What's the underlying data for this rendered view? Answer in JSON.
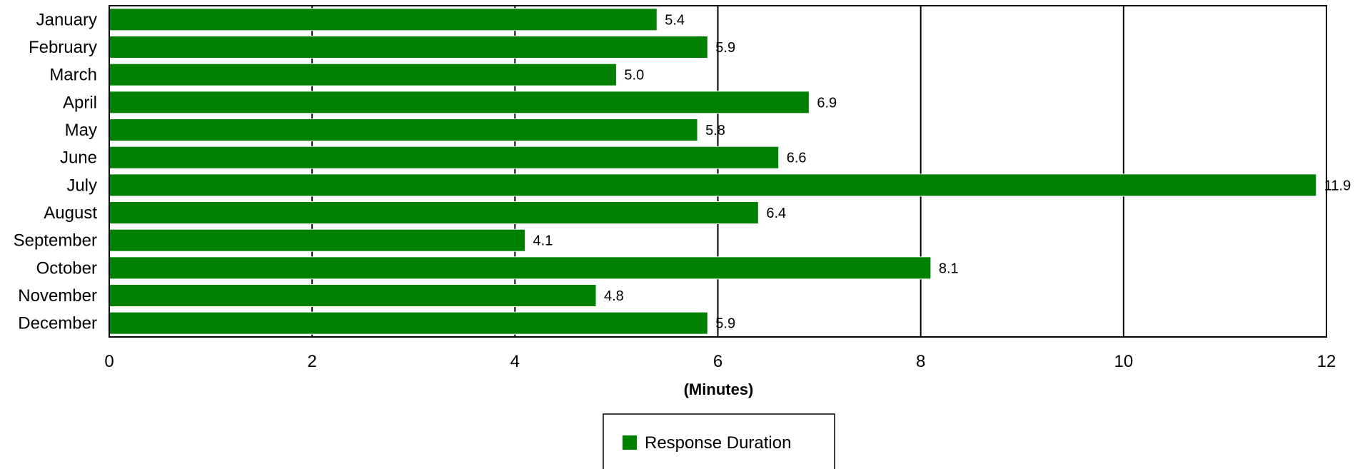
{
  "chart_data": {
    "type": "bar",
    "orientation": "horizontal",
    "categories": [
      "January",
      "February",
      "March",
      "April",
      "May",
      "June",
      "July",
      "August",
      "September",
      "October",
      "November",
      "December"
    ],
    "series": [
      {
        "name": "Response Duration",
        "values": [
          5.4,
          5.9,
          5.0,
          6.9,
          5.8,
          6.6,
          11.9,
          6.4,
          4.1,
          8.1,
          4.8,
          5.9
        ],
        "color": "#008000"
      }
    ],
    "data_labels": [
      "5.4",
      "5.9",
      "5.0",
      "6.9",
      "5.8",
      "6.6",
      "11.9",
      "6.4",
      "4.1",
      "8.1",
      "4.8",
      "5.9"
    ],
    "xlabel": "(Minutes)",
    "ylabel": "",
    "xlim": [
      0,
      12
    ],
    "x_ticks": [
      0,
      2,
      4,
      6,
      8,
      10,
      12
    ],
    "grid": "vertical",
    "legend_position": "bottom"
  }
}
